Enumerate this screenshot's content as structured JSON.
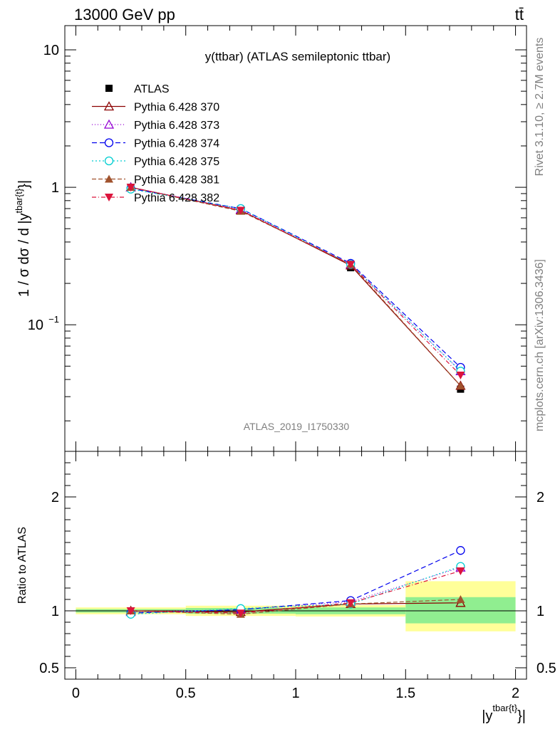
{
  "header": {
    "energy": "13000 GeV pp",
    "process": "tt̄"
  },
  "side": {
    "rivet": "Rivet 3.1.10, ≥ 2.7M events",
    "source": "mcplots.cern.ch [arXiv:1306.3436]"
  },
  "colors": {
    "band_inner": "#90ee90",
    "band_outer": "#ffff99"
  },
  "chart_data": [
    {
      "type": "line",
      "title": "y(ttbar) (ATLAS semileptonic ttbar)",
      "watermark": "ATLAS_2019_I1750330",
      "ylabel_main": "1 / σ dσ / d |y",
      "ylabel_sup": "tbar{t}",
      "ylabel_tail": "}|",
      "y_scale": "log",
      "ylim": [
        0.012,
        15
      ],
      "yticks": [
        {
          "v": 10,
          "label": "10"
        },
        {
          "v": 1,
          "label": "1"
        },
        {
          "v": 0.1,
          "label": "10",
          "exp": "−1"
        }
      ],
      "legend_position": "top-left",
      "x": [
        0.25,
        0.75,
        1.25,
        1.75
      ],
      "series": [
        {
          "name": "ATLAS",
          "values": [
            1.0,
            0.68,
            0.26,
            0.034
          ],
          "color": "#000000",
          "marker": "square-filled",
          "dash": "none"
        },
        {
          "name": "Pythia 6.428 370",
          "values": [
            1.0,
            0.68,
            0.27,
            0.036
          ],
          "color": "#8b0000",
          "marker": "triangle-open",
          "dash": "solid"
        },
        {
          "name": "Pythia 6.428 373",
          "values": [
            1.0,
            0.69,
            0.275,
            0.046
          ],
          "color": "#9400d3",
          "marker": "triangle-open",
          "dash": "1,3"
        },
        {
          "name": "Pythia 6.428 374",
          "values": [
            0.98,
            0.7,
            0.28,
            0.049
          ],
          "color": "#0000ee",
          "marker": "circle-open",
          "dash": "7,4"
        },
        {
          "name": "Pythia 6.428 375",
          "values": [
            0.97,
            0.7,
            0.275,
            0.046
          ],
          "color": "#00ced1",
          "marker": "circle-open",
          "dash": "2,3"
        },
        {
          "name": "Pythia 6.428 381",
          "values": [
            1.0,
            0.67,
            0.275,
            0.036
          ],
          "color": "#a0522d",
          "marker": "triangle-filled",
          "dash": "6,3"
        },
        {
          "name": "Pythia 6.428 382",
          "values": [
            1.0,
            0.68,
            0.275,
            0.043
          ],
          "color": "#dc143c",
          "marker": "triangle-down-filled",
          "dash": "6,3,1,3"
        }
      ]
    },
    {
      "type": "line",
      "ylabel": "Ratio to ATLAS",
      "xlabel_main": "|y",
      "xlabel_sup": "tbar{t}",
      "xlabel_tail": "}|",
      "xlim": [
        -0.05,
        2.05
      ],
      "xticks": [
        0,
        0.5,
        1,
        1.5,
        2
      ],
      "xtick_labels": [
        "0",
        "0.5",
        "1",
        "1.5",
        "2"
      ],
      "ylim": [
        0.4,
        2.4
      ],
      "yticks": [
        0.5,
        1,
        2
      ],
      "ytick_labels": [
        "0.5",
        "1",
        "2"
      ],
      "bands": [
        {
          "x0": 0.0,
          "x1": 0.5,
          "inner": [
            0.985,
            1.015
          ],
          "outer": [
            0.97,
            1.03
          ]
        },
        {
          "x0": 0.5,
          "x1": 1.0,
          "inner": [
            0.975,
            1.025
          ],
          "outer": [
            0.955,
            1.045
          ]
        },
        {
          "x0": 1.0,
          "x1": 1.5,
          "inner": [
            0.97,
            1.03
          ],
          "outer": [
            0.95,
            1.05
          ]
        },
        {
          "x0": 1.5,
          "x1": 2.0,
          "inner": [
            0.89,
            1.12
          ],
          "outer": [
            0.82,
            1.26
          ]
        }
      ],
      "x": [
        0.25,
        0.75,
        1.25,
        1.75
      ],
      "series": [
        {
          "name": "Pythia 6.428 370",
          "values": [
            1.0,
            0.99,
            1.06,
            1.07
          ]
        },
        {
          "name": "Pythia 6.428 373",
          "values": [
            0.99,
            1.01,
            1.08,
            1.38
          ]
        },
        {
          "name": "Pythia 6.428 374",
          "values": [
            0.98,
            1.01,
            1.09,
            1.53
          ]
        },
        {
          "name": "Pythia 6.428 375",
          "values": [
            0.97,
            1.02,
            1.06,
            1.39
          ]
        },
        {
          "name": "Pythia 6.428 381",
          "values": [
            1.0,
            0.97,
            1.06,
            1.1
          ]
        },
        {
          "name": "Pythia 6.428 382",
          "values": [
            1.0,
            0.98,
            1.07,
            1.35
          ]
        }
      ]
    }
  ]
}
